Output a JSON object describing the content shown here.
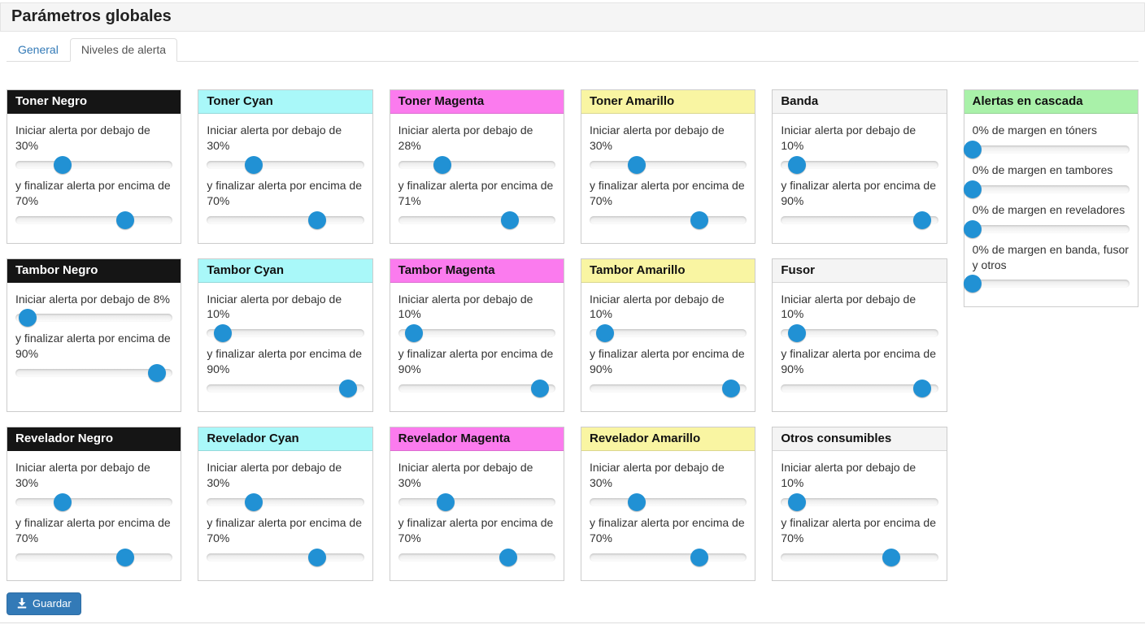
{
  "page": {
    "title": "Parámetros globales",
    "tabs": [
      {
        "label": "General",
        "active": false
      },
      {
        "label": "Niveles de alerta",
        "active": true
      }
    ],
    "save_button": {
      "label": "Guardar",
      "icon": "download-icon"
    }
  },
  "colors": {
    "header_black": "#151515",
    "header_cyan": "#a9f8f9",
    "header_magenta": "#fb7bee",
    "header_yellow": "#f9f5a2",
    "header_gray": "#f4f4f4",
    "header_green": "#a9f1a9",
    "slider_thumb": "#2191d4",
    "link": "#337ab7",
    "save_button_bg": "#337ab7"
  },
  "cards": [
    {
      "title": "Toner Negro",
      "color": "black",
      "start_label": "Iniciar alerta por debajo de 30%",
      "start_value": 30,
      "end_label": "y finalizar alerta por encima de 70%",
      "end_value": 70
    },
    {
      "title": "Toner Cyan",
      "color": "cyan",
      "start_label": "Iniciar alerta por debajo de 30%",
      "start_value": 30,
      "end_label": "y finalizar alerta por encima de 70%",
      "end_value": 70
    },
    {
      "title": "Toner Magenta",
      "color": "magenta",
      "start_label": "Iniciar alerta por debajo de 28%",
      "start_value": 28,
      "end_label": "y finalizar alerta por encima de 71%",
      "end_value": 71
    },
    {
      "title": "Toner Amarillo",
      "color": "yellow",
      "start_label": "Iniciar alerta por debajo de 30%",
      "start_value": 30,
      "end_label": "y finalizar alerta por encima de 70%",
      "end_value": 70
    },
    {
      "title": "Banda",
      "color": "gray",
      "start_label": "Iniciar alerta por debajo de 10%",
      "start_value": 10,
      "end_label": "y finalizar alerta por encima de 90%",
      "end_value": 90
    },
    {
      "title": "Tambor Negro",
      "color": "black",
      "start_label": "Iniciar alerta por debajo de 8%",
      "start_value": 8,
      "end_label": "y finalizar alerta por encima de 90%",
      "end_value": 90
    },
    {
      "title": "Tambor Cyan",
      "color": "cyan",
      "start_label": "Iniciar alerta por debajo de 10%",
      "start_value": 10,
      "end_label": "y finalizar alerta por encima de 90%",
      "end_value": 90
    },
    {
      "title": "Tambor Magenta",
      "color": "magenta",
      "start_label": "Iniciar alerta por debajo de 10%",
      "start_value": 10,
      "end_label": "y finalizar alerta por encima de 90%",
      "end_value": 90
    },
    {
      "title": "Tambor Amarillo",
      "color": "yellow",
      "start_label": "Iniciar alerta por debajo de 10%",
      "start_value": 10,
      "end_label": "y finalizar alerta por encima de 90%",
      "end_value": 90
    },
    {
      "title": "Fusor",
      "color": "gray",
      "start_label": "Iniciar alerta por debajo de 10%",
      "start_value": 10,
      "end_label": "y finalizar alerta por encima de 90%",
      "end_value": 90
    },
    {
      "title": "Revelador Negro",
      "color": "black",
      "start_label": "Iniciar alerta por debajo de 30%",
      "start_value": 30,
      "end_label": "y finalizar alerta por encima de 70%",
      "end_value": 70
    },
    {
      "title": "Revelador Cyan",
      "color": "cyan",
      "start_label": "Iniciar alerta por debajo de 30%",
      "start_value": 30,
      "end_label": "y finalizar alerta por encima de 70%",
      "end_value": 70
    },
    {
      "title": "Revelador Magenta",
      "color": "magenta",
      "start_label": "Iniciar alerta por debajo de 30%",
      "start_value": 30,
      "end_label": "y finalizar alerta por encima de 70%",
      "end_value": 70
    },
    {
      "title": "Revelador Amarillo",
      "color": "yellow",
      "start_label": "Iniciar alerta por debajo de 30%",
      "start_value": 30,
      "end_label": "y finalizar alerta por encima de 70%",
      "end_value": 70
    },
    {
      "title": "Otros consumibles",
      "color": "gray",
      "start_label": "Iniciar alerta por debajo de 10%",
      "start_value": 10,
      "end_label": "y finalizar alerta por encima de 70%",
      "end_value": 70
    }
  ],
  "cascade": {
    "title": "Alertas en cascada",
    "color": "green",
    "items": [
      {
        "label": "0% de margen en tóners",
        "value": 0
      },
      {
        "label": "0% de margen en tambores",
        "value": 0
      },
      {
        "label": "0% de margen en reveladores",
        "value": 0
      },
      {
        "label": "0% de margen en banda, fusor y otros",
        "value": 0
      }
    ]
  }
}
